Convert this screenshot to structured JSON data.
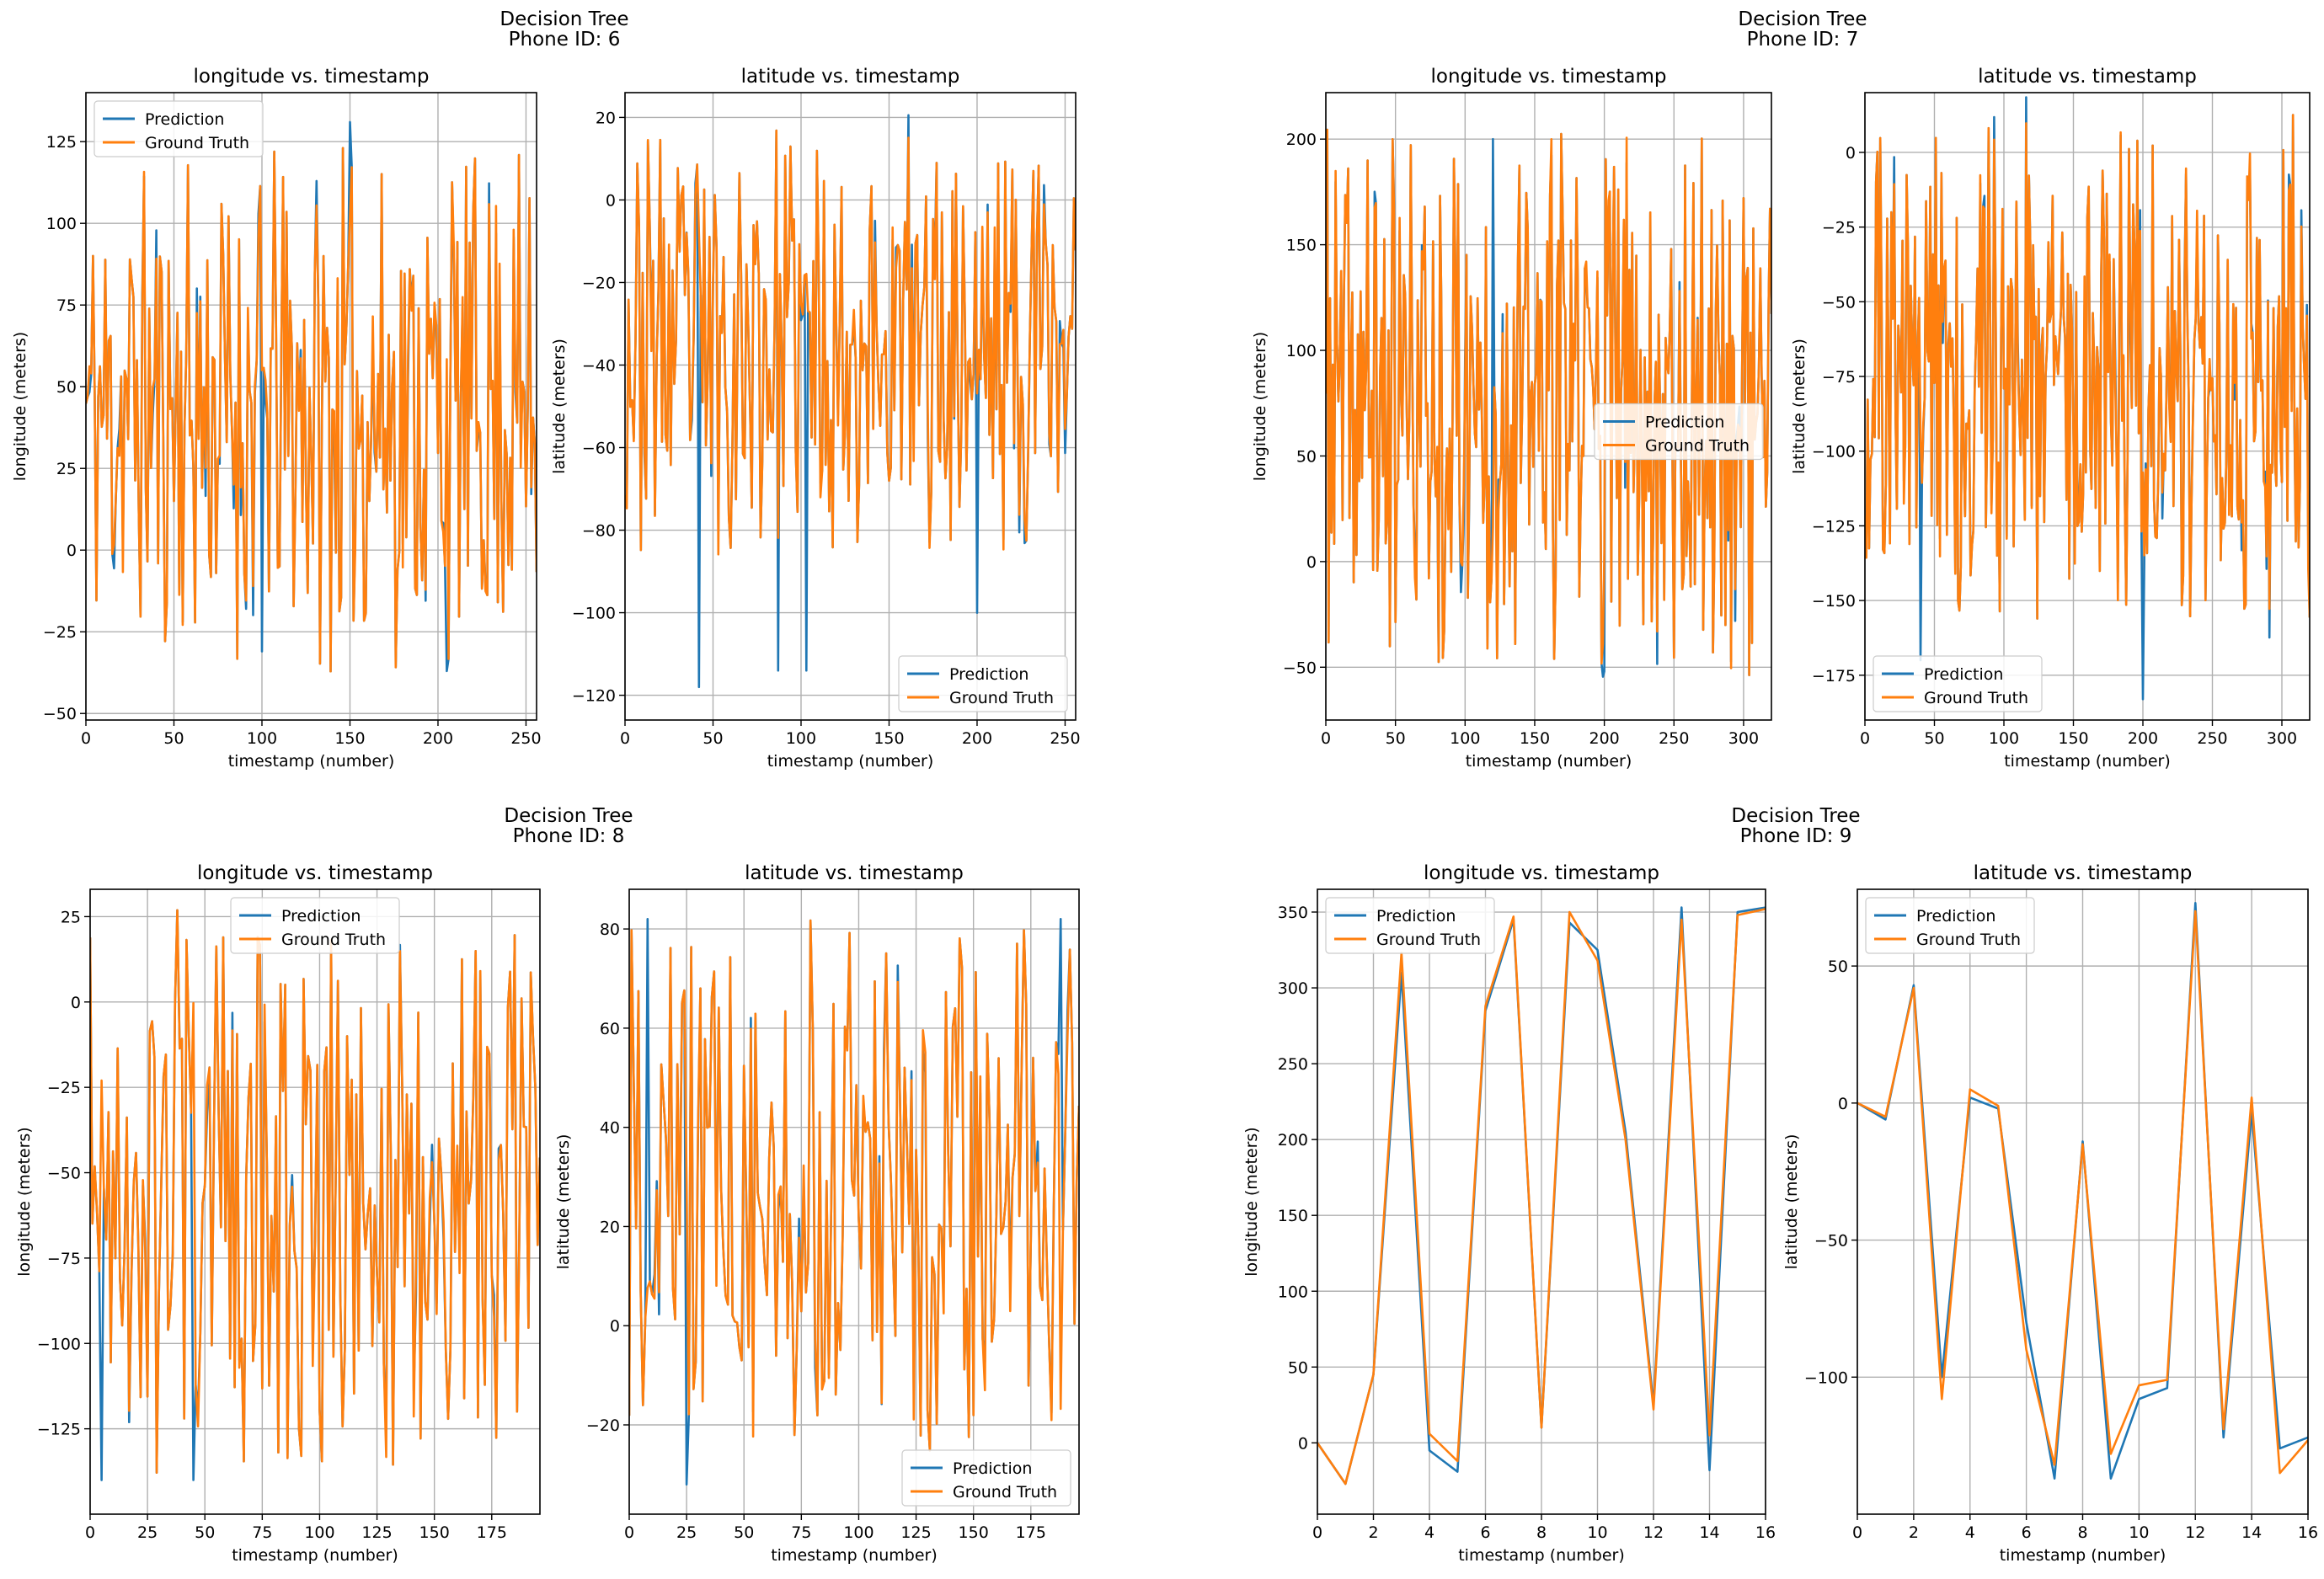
{
  "colors": {
    "prediction": "#1f77b4",
    "ground_truth": "#ff7f0e",
    "grid": "#b0b0b0",
    "axes": "#000000"
  },
  "groups": [
    {
      "title": "Decision Tree",
      "subtitle": "Phone ID: 6"
    },
    {
      "title": "Decision Tree",
      "subtitle": "Phone ID: 7"
    },
    {
      "title": "Decision Tree",
      "subtitle": "Phone ID: 8"
    },
    {
      "title": "Decision Tree",
      "subtitle": "Phone ID: 9"
    }
  ],
  "chart_data": [
    {
      "group": 0,
      "type": "line",
      "title": "longitude vs. timestamp",
      "xlabel": "timestamp (number)",
      "ylabel": "longitude (meters)",
      "xlim": [
        0,
        256
      ],
      "ylim": [
        -52,
        140
      ],
      "xticks": [
        0,
        50,
        100,
        150,
        200,
        250
      ],
      "yticks": [
        -50,
        -25,
        0,
        25,
        50,
        75,
        100,
        125
      ],
      "legend": {
        "loc": "upper-left",
        "entries": [
          "Prediction",
          "Ground Truth"
        ]
      },
      "noisy": {
        "n": 257,
        "seed": 11,
        "lo": -38,
        "hi": 125,
        "spikes_pred": [
          [
            150,
            131
          ],
          [
            100,
            -31
          ],
          [
            205,
            -37
          ]
        ]
      },
      "series": [
        {
          "name": "Prediction"
        },
        {
          "name": "Ground Truth"
        }
      ]
    },
    {
      "group": 0,
      "type": "line",
      "title": "latitude vs. timestamp",
      "xlabel": "timestamp (number)",
      "ylabel": "latitude (meters)",
      "xlim": [
        0,
        256
      ],
      "ylim": [
        -126,
        26
      ],
      "xticks": [
        0,
        50,
        100,
        150,
        200,
        250
      ],
      "yticks": [
        -120,
        -100,
        -80,
        -60,
        -40,
        -20,
        0,
        20
      ],
      "legend": {
        "loc": "lower-right",
        "entries": [
          "Prediction",
          "Ground Truth"
        ]
      },
      "noisy": {
        "n": 257,
        "seed": 23,
        "lo": -88,
        "hi": 19,
        "spikes_pred": [
          [
            42,
            -118
          ],
          [
            87,
            -114
          ],
          [
            103,
            -114
          ],
          [
            200,
            -100
          ]
        ]
      },
      "series": [
        {
          "name": "Prediction"
        },
        {
          "name": "Ground Truth"
        }
      ]
    },
    {
      "group": 1,
      "type": "line",
      "title": "longitude vs. timestamp",
      "xlabel": "timestamp (number)",
      "ylabel": "longitude (meters)",
      "xlim": [
        0,
        320
      ],
      "ylim": [
        -75,
        222
      ],
      "xticks": [
        0,
        50,
        100,
        150,
        200,
        250,
        300
      ],
      "yticks": [
        -50,
        0,
        50,
        100,
        150,
        200
      ],
      "legend": {
        "loc": "center-right",
        "entries": [
          "Prediction",
          "Ground Truth"
        ]
      },
      "noisy": {
        "n": 321,
        "seed": 37,
        "lo": -55,
        "hi": 208,
        "spikes_pred": [
          [
            200,
            -52
          ],
          [
            120,
            200
          ]
        ]
      },
      "series": [
        {
          "name": "Prediction"
        },
        {
          "name": "Ground Truth"
        }
      ]
    },
    {
      "group": 1,
      "type": "line",
      "title": "latitude vs. timestamp",
      "xlabel": "timestamp (number)",
      "ylabel": "latitude (meters)",
      "xlim": [
        0,
        320
      ],
      "ylim": [
        -190,
        20
      ],
      "xticks": [
        0,
        50,
        100,
        150,
        200,
        250,
        300
      ],
      "yticks": [
        -175,
        -150,
        -125,
        -100,
        -75,
        -50,
        -25,
        0
      ],
      "legend": {
        "loc": "lower-left",
        "entries": [
          "Prediction",
          "Ground Truth"
        ]
      },
      "noisy": {
        "n": 321,
        "seed": 51,
        "lo": -158,
        "hi": 14,
        "spikes_pred": [
          [
            40,
            -170
          ],
          [
            200,
            -183
          ]
        ]
      },
      "series": [
        {
          "name": "Prediction"
        },
        {
          "name": "Ground Truth"
        }
      ]
    },
    {
      "group": 2,
      "type": "line",
      "title": "longitude vs. timestamp",
      "xlabel": "timestamp (number)",
      "ylabel": "longitude (meters)",
      "xlim": [
        0,
        196
      ],
      "ylim": [
        -150,
        33
      ],
      "xticks": [
        0,
        25,
        50,
        75,
        100,
        125,
        150,
        175
      ],
      "yticks": [
        -125,
        -100,
        -75,
        -50,
        -25,
        0,
        25
      ],
      "legend": {
        "loc": "upper-center",
        "entries": [
          "Prediction",
          "Ground Truth"
        ]
      },
      "noisy": {
        "n": 197,
        "seed": 67,
        "lo": -140,
        "hi": 27,
        "spikes_pred": [
          [
            5,
            -140
          ],
          [
            45,
            -140
          ]
        ]
      },
      "series": [
        {
          "name": "Prediction"
        },
        {
          "name": "Ground Truth"
        }
      ]
    },
    {
      "group": 2,
      "type": "line",
      "title": "latitude vs. timestamp",
      "xlabel": "timestamp (number)",
      "ylabel": "latitude (meters)",
      "xlim": [
        0,
        196
      ],
      "ylim": [
        -38,
        88
      ],
      "xticks": [
        0,
        25,
        50,
        75,
        100,
        125,
        150,
        175
      ],
      "yticks": [
        -20,
        0,
        20,
        40,
        60,
        80
      ],
      "legend": {
        "loc": "lower-right",
        "entries": [
          "Prediction",
          "Ground Truth"
        ]
      },
      "noisy": {
        "n": 197,
        "seed": 79,
        "lo": -26,
        "hi": 82,
        "spikes_pred": [
          [
            25,
            -32
          ],
          [
            8,
            82
          ],
          [
            188,
            82
          ]
        ]
      },
      "series": [
        {
          "name": "Prediction"
        },
        {
          "name": "Ground Truth"
        }
      ]
    },
    {
      "group": 3,
      "type": "line",
      "title": "longitude vs. timestamp",
      "xlabel": "timestamp (number)",
      "ylabel": "longitude (meters)",
      "xlim": [
        0,
        16
      ],
      "ylim": [
        -47,
        365
      ],
      "xticks": [
        0,
        2,
        4,
        6,
        8,
        10,
        12,
        14,
        16
      ],
      "yticks": [
        0,
        50,
        100,
        150,
        200,
        250,
        300,
        350
      ],
      "legend": {
        "loc": "upper-left",
        "entries": [
          "Prediction",
          "Ground Truth"
        ]
      },
      "x": [
        0,
        1,
        2,
        3,
        4,
        5,
        6,
        7,
        8,
        9,
        10,
        11,
        12,
        13,
        14,
        15,
        16
      ],
      "series": [
        {
          "name": "Prediction",
          "values": [
            0,
            -27,
            45,
            310,
            -5,
            -19,
            285,
            345,
            10,
            343,
            325,
            205,
            25,
            353,
            -18,
            350,
            353
          ]
        },
        {
          "name": "Ground Truth",
          "values": [
            0,
            -27,
            45,
            323,
            6,
            -12,
            288,
            347,
            10,
            350,
            318,
            200,
            22,
            345,
            5,
            348,
            352
          ]
        }
      ]
    },
    {
      "group": 3,
      "type": "line",
      "title": "latitude vs. timestamp",
      "xlabel": "timestamp (number)",
      "ylabel": "latitude (meters)",
      "xlim": [
        0,
        16
      ],
      "ylim": [
        -150,
        78
      ],
      "xticks": [
        0,
        2,
        4,
        6,
        8,
        10,
        12,
        14,
        16
      ],
      "yticks": [
        -100,
        -50,
        0,
        50
      ],
      "legend": {
        "loc": "upper-left",
        "entries": [
          "Prediction",
          "Ground Truth"
        ]
      },
      "x": [
        0,
        1,
        2,
        3,
        4,
        5,
        6,
        7,
        8,
        9,
        10,
        11,
        12,
        13,
        14,
        15,
        16
      ],
      "series": [
        {
          "name": "Prediction",
          "values": [
            0,
            -6,
            43,
            -100,
            2,
            -2,
            -80,
            -137,
            -14,
            -137,
            -108,
            -104,
            73,
            -122,
            -3,
            -126,
            -122
          ]
        },
        {
          "name": "Ground Truth",
          "values": [
            0,
            -5,
            42,
            -108,
            5,
            -1,
            -90,
            -132,
            -15,
            -128,
            -103,
            -101,
            70,
            -119,
            2,
            -135,
            -123
          ]
        }
      ]
    }
  ]
}
